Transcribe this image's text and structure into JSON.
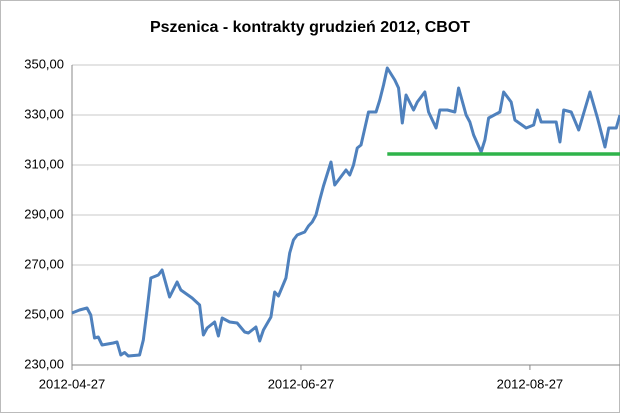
{
  "chart_data": {
    "type": "line",
    "title": "Pszenica - kontrakty grudzień 2012, CBOT",
    "xlim": [
      "2012-04-27",
      "2012-09-20"
    ],
    "xticks": [
      "2012-04-27",
      "2012-06-27",
      "2012-08-27"
    ],
    "ylim": [
      230,
      350
    ],
    "yticks": [
      {
        "value": 230,
        "label": "230,00"
      },
      {
        "value": 250,
        "label": "250,00"
      },
      {
        "value": 270,
        "label": "270,00"
      },
      {
        "value": 290,
        "label": "290,00"
      },
      {
        "value": 310,
        "label": "310,00"
      },
      {
        "value": 330,
        "label": "330,00"
      },
      {
        "value": 350,
        "label": "350,00"
      }
    ],
    "grid": true,
    "series": [
      {
        "color": "#4f81bd",
        "x": [
          "2012-04-27",
          "2012-04-29",
          "2012-05-01",
          "2012-05-02",
          "2012-05-03",
          "2012-05-04",
          "2012-05-05",
          "2012-05-08",
          "2012-05-09",
          "2012-05-10",
          "2012-05-11",
          "2012-05-12",
          "2012-05-15",
          "2012-05-16",
          "2012-05-17",
          "2012-05-18",
          "2012-05-20",
          "2012-05-21",
          "2012-05-23",
          "2012-05-25",
          "2012-05-26",
          "2012-05-29",
          "2012-05-31",
          "2012-06-01",
          "2012-06-02",
          "2012-06-04",
          "2012-06-05",
          "2012-06-06",
          "2012-06-08",
          "2012-06-10",
          "2012-06-12",
          "2012-06-13",
          "2012-06-15",
          "2012-06-16",
          "2012-06-17",
          "2012-06-19",
          "2012-06-20",
          "2012-06-21",
          "2012-06-23",
          "2012-06-24",
          "2012-06-25",
          "2012-06-26",
          "2012-06-28",
          "2012-06-29",
          "2012-06-30",
          "2012-07-01",
          "2012-07-02",
          "2012-07-03",
          "2012-07-05",
          "2012-07-06",
          "2012-07-07",
          "2012-07-09",
          "2012-07-10",
          "2012-07-11",
          "2012-07-12",
          "2012-07-13",
          "2012-07-15",
          "2012-07-17",
          "2012-07-18",
          "2012-07-19",
          "2012-07-20",
          "2012-07-22",
          "2012-07-23",
          "2012-07-24",
          "2012-07-25",
          "2012-07-27",
          "2012-07-28",
          "2012-07-30",
          "2012-07-31",
          "2012-08-02",
          "2012-08-03",
          "2012-08-05",
          "2012-08-07",
          "2012-08-08",
          "2012-08-10",
          "2012-08-11",
          "2012-08-12",
          "2012-08-14",
          "2012-08-15",
          "2012-08-16",
          "2012-08-19",
          "2012-08-20",
          "2012-08-22",
          "2012-08-23",
          "2012-08-26",
          "2012-08-28",
          "2012-08-29",
          "2012-08-30",
          "2012-08-31",
          "2012-09-03",
          "2012-09-04",
          "2012-09-05",
          "2012-09-07",
          "2012-09-09",
          "2012-09-12",
          "2012-09-14",
          "2012-09-16",
          "2012-09-17",
          "2012-09-19",
          "2012-09-20"
        ],
        "values": [
          250.8,
          252,
          252.8,
          250,
          240.8,
          241.2,
          238,
          238.8,
          239.2,
          234,
          235,
          233.6,
          234,
          240,
          252,
          264.8,
          266,
          268,
          257.2,
          263.2,
          260,
          256.8,
          254,
          242,
          244.8,
          247.2,
          241.6,
          248.8,
          247.2,
          246.8,
          243.2,
          242.8,
          245.2,
          239.6,
          244,
          249.2,
          259.2,
          257.6,
          264.8,
          274.8,
          280,
          282,
          283.2,
          285.6,
          287.2,
          290,
          296,
          301.6,
          311.2,
          302,
          304,
          308,
          306,
          310,
          316.8,
          318,
          331.2,
          331.2,
          336,
          342,
          348.8,
          344,
          340.8,
          326.8,
          338,
          332,
          335.2,
          339.2,
          331.2,
          324.8,
          332,
          332,
          331.2,
          340.8,
          330,
          327.2,
          322,
          315.2,
          320,
          328.8,
          331.2,
          339.2,
          335.2,
          328,
          324.8,
          326,
          332,
          327.2,
          327.2,
          327.2,
          319.2,
          332,
          331.2,
          324,
          339.2,
          328.8,
          317.2,
          324.8,
          324.8,
          330
        ]
      },
      {
        "color": "#2fb34a",
        "x": [
          "2012-07-20",
          "2012-09-20"
        ],
        "values": [
          314.4,
          314.4
        ]
      }
    ]
  }
}
